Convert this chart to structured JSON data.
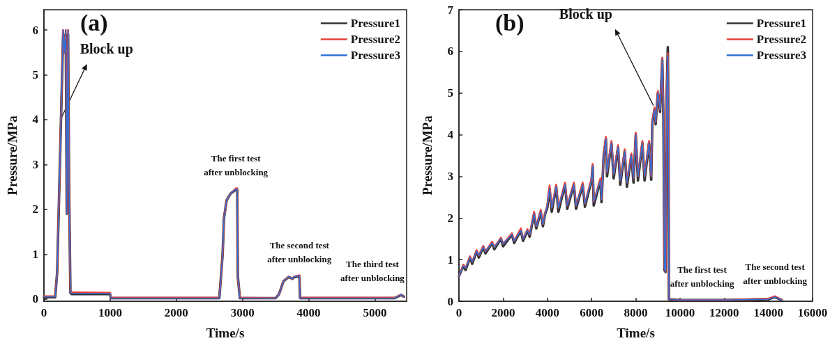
{
  "chart_data": [
    {
      "type": "line",
      "title": "(a)",
      "xlabel": "Time/s",
      "ylabel": "Pressure/MPa",
      "xlim": [
        0,
        5480
      ],
      "ylim": [
        -0.05,
        6.45
      ],
      "xticks": [
        0,
        1000,
        2000,
        3000,
        4000,
        5000
      ],
      "yticks": [
        0,
        1,
        2,
        3,
        4,
        5,
        6
      ],
      "legend": "top right",
      "x": [
        0,
        170,
        200,
        290,
        310,
        330,
        345,
        365,
        380,
        400,
        420,
        1000,
        1010,
        2650,
        2700,
        2720,
        2760,
        2820,
        2900,
        2920,
        2930,
        2960,
        3500,
        3550,
        3620,
        3700,
        3760,
        3780,
        3860,
        3870,
        5300,
        5400,
        5440
      ],
      "series": [
        {
          "name": "Pressure1",
          "color": "#333333",
          "values": [
            0.04,
            0.04,
            0.6,
            5.9,
            5.5,
            5.9,
            1.9,
            5.9,
            2.5,
            0.14,
            0.11,
            0.11,
            0.02,
            0.02,
            1.0,
            1.8,
            2.2,
            2.35,
            2.44,
            2.44,
            0.5,
            0.02,
            0.02,
            0.1,
            0.4,
            0.49,
            0.45,
            0.49,
            0.51,
            0.02,
            0.02,
            0.09,
            0.05
          ]
        },
        {
          "name": "Pressure2",
          "color": "#e8403a",
          "values": [
            0.06,
            0.06,
            0.6,
            6.0,
            5.5,
            6.0,
            1.9,
            6.0,
            2.5,
            0.16,
            0.15,
            0.14,
            0.03,
            0.03,
            1.0,
            1.8,
            2.2,
            2.35,
            2.47,
            2.47,
            0.5,
            0.03,
            0.02,
            0.1,
            0.4,
            0.5,
            0.45,
            0.5,
            0.53,
            0.03,
            0.03,
            0.1,
            0.05
          ]
        },
        {
          "name": "Pressure3",
          "color": "#2f6fd6",
          "values": [
            0.05,
            0.05,
            0.6,
            6.0,
            5.5,
            6.0,
            1.9,
            6.0,
            2.5,
            0.15,
            0.12,
            0.12,
            0.02,
            0.02,
            1.0,
            1.8,
            2.2,
            2.35,
            2.45,
            2.45,
            0.5,
            0.02,
            0.02,
            0.1,
            0.4,
            0.5,
            0.45,
            0.5,
            0.52,
            0.02,
            0.02,
            0.1,
            0.05
          ]
        }
      ],
      "annotations": [
        {
          "text": "Block up",
          "x": 250,
          "y": 4.0
        },
        {
          "text": "The first test\nafter unblocking",
          "x": 2900,
          "y": 2.45
        },
        {
          "text": "The second test\nafter unblocking",
          "x": 3860,
          "y": 0.52
        },
        {
          "text": "The third test\nafter unblocking",
          "x": 5400,
          "y": 0.1
        }
      ]
    },
    {
      "type": "line",
      "title": "(b)",
      "xlabel": "Time/s",
      "ylabel": "Pressure/MPa",
      "xlim": [
        0,
        16000
      ],
      "ylim": [
        0,
        7
      ],
      "xticks": [
        0,
        2000,
        4000,
        6000,
        8000,
        10000,
        12000,
        14000,
        16000
      ],
      "yticks": [
        0,
        1,
        2,
        3,
        4,
        5,
        6,
        7
      ],
      "legend": "top right",
      "x": [
        0,
        200,
        300,
        500,
        600,
        800,
        900,
        1100,
        1200,
        1500,
        1600,
        1900,
        2000,
        2400,
        2500,
        2800,
        2900,
        3100,
        3200,
        3400,
        3500,
        3700,
        3800,
        3900,
        4000,
        4100,
        4200,
        4400,
        4500,
        4800,
        4900,
        5200,
        5300,
        5600,
        5700,
        6000,
        6050,
        6100,
        6400,
        6450,
        6550,
        6650,
        6700,
        6900,
        7000,
        7200,
        7300,
        7500,
        7600,
        7800,
        7900,
        8000,
        8100,
        8300,
        8400,
        8600,
        8700,
        8750,
        8850,
        8900,
        9000,
        9100,
        9200,
        9250,
        9300,
        9350,
        9400,
        9450,
        9480,
        9500,
        10000,
        12000,
        14000,
        14300,
        14600
      ],
      "series": [
        {
          "name": "Pressure1",
          "color": "#333333",
          "values": [
            0.6,
            0.85,
            0.75,
            1.05,
            0.9,
            1.2,
            1.05,
            1.3,
            1.15,
            1.4,
            1.25,
            1.5,
            1.32,
            1.6,
            1.4,
            1.7,
            1.45,
            1.7,
            1.55,
            2.1,
            1.75,
            2.15,
            1.8,
            2.1,
            2.25,
            2.7,
            2.15,
            2.75,
            2.15,
            2.8,
            2.22,
            2.8,
            2.22,
            2.8,
            2.27,
            2.9,
            3.25,
            2.3,
            2.9,
            2.38,
            3.5,
            3.9,
            3.0,
            3.8,
            2.95,
            3.7,
            2.8,
            3.6,
            2.75,
            3.5,
            2.85,
            4.0,
            2.9,
            3.8,
            2.9,
            3.8,
            2.92,
            4.3,
            4.6,
            4.25,
            5.0,
            4.55,
            5.8,
            4.45,
            0.75,
            0.7,
            5.0,
            6.1,
            4.35,
            0.05,
            0.03,
            0.03,
            0.05,
            0.1,
            0.03
          ]
        },
        {
          "name": "Pressure2",
          "color": "#e8403a",
          "values": [
            0.6,
            0.88,
            0.8,
            1.08,
            0.95,
            1.23,
            1.1,
            1.33,
            1.2,
            1.43,
            1.3,
            1.53,
            1.38,
            1.63,
            1.45,
            1.75,
            1.5,
            1.73,
            1.6,
            2.15,
            1.8,
            2.2,
            1.85,
            2.13,
            2.3,
            2.78,
            2.25,
            2.8,
            2.25,
            2.85,
            2.3,
            2.85,
            2.3,
            2.85,
            2.35,
            2.95,
            3.3,
            2.4,
            2.95,
            2.45,
            3.55,
            3.95,
            3.1,
            3.85,
            3.05,
            3.75,
            2.9,
            3.65,
            2.85,
            3.55,
            2.95,
            4.05,
            3.0,
            3.85,
            3.0,
            3.85,
            3.0,
            4.35,
            4.65,
            4.3,
            5.05,
            4.6,
            5.85,
            4.5,
            0.8,
            0.7,
            5.05,
            5.95,
            4.4,
            0.05,
            0.03,
            0.03,
            0.06,
            0.12,
            0.03
          ]
        },
        {
          "name": "Pressure3",
          "color": "#2f6fd6",
          "values": [
            0.6,
            0.85,
            0.8,
            1.05,
            0.95,
            1.2,
            1.1,
            1.3,
            1.2,
            1.4,
            1.3,
            1.5,
            1.38,
            1.6,
            1.45,
            1.7,
            1.5,
            1.7,
            1.6,
            2.1,
            1.8,
            2.15,
            1.85,
            2.1,
            2.3,
            2.7,
            2.25,
            2.75,
            2.25,
            2.8,
            2.3,
            2.8,
            2.3,
            2.8,
            2.35,
            2.9,
            3.25,
            2.4,
            2.9,
            2.45,
            3.5,
            3.9,
            3.1,
            3.8,
            3.05,
            3.7,
            2.9,
            3.6,
            2.85,
            3.5,
            2.95,
            4.0,
            3.0,
            3.8,
            3.0,
            3.8,
            3.0,
            4.3,
            4.6,
            4.3,
            5.0,
            4.6,
            5.8,
            4.5,
            0.8,
            0.7,
            5.0,
            5.9,
            4.4,
            0.05,
            0.03,
            0.03,
            0.05,
            0.1,
            0.03
          ]
        }
      ],
      "annotations": [
        {
          "text": "Block up",
          "x": 8800,
          "y": 4.7
        },
        {
          "text": "The first test\nafter unblocking",
          "x": 11000,
          "y": 0.03
        },
        {
          "text": "The second test\nafter unblocking",
          "x": 14300,
          "y": 0.1
        }
      ]
    }
  ]
}
